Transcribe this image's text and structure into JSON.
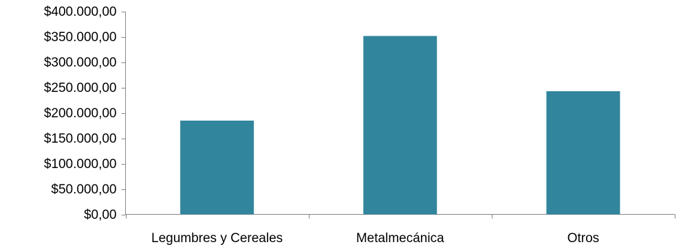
{
  "chart_data": {
    "type": "bar",
    "title": "",
    "xlabel": "",
    "ylabel": "",
    "categories": [
      "Legumbres y Cereales",
      "Metalmecánica",
      "Otros"
    ],
    "values": [
      185000,
      352000,
      243000
    ],
    "ylim": [
      0,
      400000
    ],
    "yticks": [
      0,
      50000,
      100000,
      150000,
      200000,
      250000,
      300000,
      350000,
      400000
    ],
    "ytick_labels": [
      "$0,00",
      "$50.000,00",
      "$100.000,00",
      "$150.000,00",
      "$200.000,00",
      "$250.000,00",
      "$300.000,00",
      "$350.000,00",
      "$400.000,00"
    ],
    "bar_color": "#31859C",
    "axis_color": "#868686",
    "grid": false,
    "legend": "none"
  }
}
